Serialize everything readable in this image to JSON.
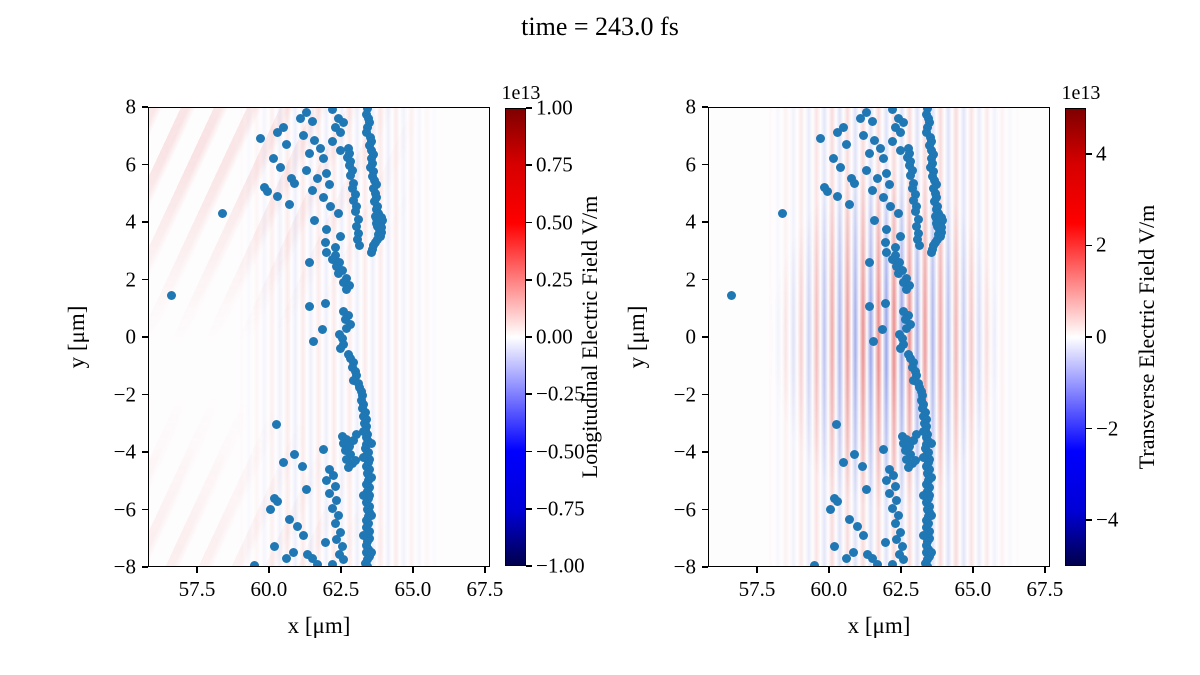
{
  "title": "time = 243.0 fs",
  "axes": {
    "xlabel": "x [μm]",
    "ylabel": "y [μm]",
    "xlim": [
      55.8,
      67.68
    ],
    "ylim": [
      -8,
      8
    ],
    "xticks": [
      57.5,
      60.0,
      62.5,
      65.0,
      67.5
    ],
    "xtick_labels": [
      "57.5",
      "60.0",
      "62.5",
      "65.0",
      "67.5"
    ],
    "yticks": [
      8,
      6,
      4,
      2,
      0,
      -2,
      -4,
      -6,
      -8
    ],
    "ytick_labels": [
      "8",
      "6",
      "4",
      "2",
      "0",
      "−2",
      "−4",
      "−6",
      "−8"
    ]
  },
  "panels": [
    {
      "name": "longitudinal-field-panel",
      "colorbar": {
        "label": "Longitudinal Electric Field V/m",
        "multiplier": "1e13",
        "vmin": -1.0,
        "vmax": 1.0,
        "ticks": [
          1.0,
          0.75,
          0.5,
          0.25,
          0.0,
          -0.25,
          -0.5,
          -0.75,
          -1.0
        ],
        "tick_labels": [
          "1.00",
          "0.75",
          "0.50",
          "0.25",
          "0.00",
          "−0.25",
          "−0.50",
          "−0.75",
          "−1.00"
        ]
      }
    },
    {
      "name": "transverse-field-panel",
      "colorbar": {
        "label": "Transverse Electric Field V/m",
        "multiplier": "1e13",
        "vmin": -5.0,
        "vmax": 5.0,
        "ticks": [
          4,
          2,
          0,
          -2,
          -4
        ],
        "tick_labels": [
          "4",
          "2",
          "0",
          "−2",
          "−4"
        ]
      }
    }
  ],
  "colors": {
    "marker": "#1f77b4",
    "colormap": "seismic",
    "cmap_top": "#7f0000",
    "cmap_upper": "#ff0000",
    "cmap_mid": "#ffffff",
    "cmap_lower": "#0000ff",
    "cmap_bottom": "#00004d",
    "field_red": "rgba(214,39,40,0.42)",
    "field_blue": "rgba(63,83,211,0.40)"
  },
  "chart_data": {
    "type": "scatter",
    "title": "time = 243.0 fs",
    "xlabel": "x [μm]",
    "ylabel": "y [μm]",
    "xlim": [
      55.8,
      67.68
    ],
    "ylim": [
      -8,
      8
    ],
    "grid": false,
    "marker_color": "#1f77b4",
    "note": "Two side-by-side panels share identical particle scatter positions; backgrounds are pcolormesh fields (seismic colormap): left = longitudinal E-field (vmax 1e13 V/m, very faint vertical/diagonal striping), right = transverse E-field (vmax 5e13 V/m, strong vertical red/blue laser stripes centered near x=62, y=0, period ~0.54 um, Gaussian envelope)",
    "background_field": {
      "stripe_period_um": 0.54,
      "right_panel_envelope_center": [
        62.0,
        0.0
      ],
      "right_panel_envelope_radius_um": [
        4.0,
        6.0
      ],
      "colormap": "seismic"
    },
    "points": [
      [
        63.42,
        7.95
      ],
      [
        63.38,
        7.75
      ],
      [
        63.45,
        7.6
      ],
      [
        63.5,
        7.45
      ],
      [
        63.42,
        7.3
      ],
      [
        63.4,
        7.1
      ],
      [
        63.52,
        6.95
      ],
      [
        63.55,
        6.8
      ],
      [
        63.5,
        6.65
      ],
      [
        63.58,
        6.5
      ],
      [
        63.62,
        6.35
      ],
      [
        63.55,
        6.2
      ],
      [
        63.6,
        6.05
      ],
      [
        63.52,
        5.9
      ],
      [
        63.65,
        5.75
      ],
      [
        63.6,
        5.6
      ],
      [
        63.68,
        5.45
      ],
      [
        63.72,
        5.3
      ],
      [
        63.65,
        5.15
      ],
      [
        63.7,
        5.0
      ],
      [
        63.75,
        4.85
      ],
      [
        63.68,
        4.7
      ],
      [
        63.78,
        4.55
      ],
      [
        63.72,
        4.42
      ],
      [
        63.8,
        4.3
      ],
      [
        63.85,
        4.2
      ],
      [
        63.75,
        4.12
      ],
      [
        63.82,
        4.0
      ],
      [
        63.88,
        3.92
      ],
      [
        63.78,
        3.85
      ],
      [
        63.85,
        3.75
      ],
      [
        63.9,
        3.65
      ],
      [
        63.8,
        3.58
      ],
      [
        63.86,
        3.48
      ],
      [
        63.78,
        3.4
      ],
      [
        63.7,
        3.3
      ],
      [
        63.65,
        3.18
      ],
      [
        63.6,
        3.05
      ],
      [
        63.55,
        2.95
      ],
      [
        63.95,
        4.05
      ],
      [
        63.92,
        3.8
      ],
      [
        63.7,
        4.2
      ],
      [
        63.72,
        3.95
      ],
      [
        63.9,
        4.15
      ],
      [
        62.75,
        6.55
      ],
      [
        62.8,
        6.4
      ],
      [
        62.72,
        6.25
      ],
      [
        62.85,
        6.1
      ],
      [
        62.8,
        5.95
      ],
      [
        62.9,
        5.8
      ],
      [
        62.85,
        5.62
      ],
      [
        62.95,
        5.35
      ],
      [
        62.9,
        5.15
      ],
      [
        63.0,
        4.95
      ],
      [
        62.95,
        4.75
      ],
      [
        63.05,
        4.55
      ],
      [
        63.0,
        4.35
      ],
      [
        63.1,
        4.1
      ],
      [
        63.05,
        3.85
      ],
      [
        63.12,
        3.6
      ],
      [
        63.08,
        3.38
      ],
      [
        63.15,
        3.2
      ],
      [
        59.7,
        6.9
      ],
      [
        59.85,
        5.2
      ],
      [
        59.95,
        5.05
      ],
      [
        60.3,
        7.1
      ],
      [
        60.5,
        7.3
      ],
      [
        60.6,
        6.7
      ],
      [
        60.15,
        6.2
      ],
      [
        60.4,
        5.9
      ],
      [
        60.8,
        5.5
      ],
      [
        60.9,
        5.35
      ],
      [
        60.3,
        4.9
      ],
      [
        60.7,
        4.6
      ],
      [
        61.1,
        7.6
      ],
      [
        61.3,
        7.8
      ],
      [
        61.5,
        7.5
      ],
      [
        61.2,
        7.0
      ],
      [
        61.6,
        6.85
      ],
      [
        61.4,
        6.4
      ],
      [
        61.8,
        6.55
      ],
      [
        61.9,
        6.2
      ],
      [
        61.3,
        5.8
      ],
      [
        61.7,
        5.5
      ],
      [
        62.0,
        5.7
      ],
      [
        62.1,
        5.3
      ],
      [
        61.5,
        5.1
      ],
      [
        61.9,
        4.85
      ],
      [
        62.2,
        7.9
      ],
      [
        62.4,
        7.6
      ],
      [
        62.3,
        7.3
      ],
      [
        62.6,
        7.45
      ],
      [
        62.5,
        7.1
      ],
      [
        62.2,
        6.8
      ],
      [
        62.5,
        6.5
      ],
      [
        62.15,
        4.55
      ],
      [
        62.4,
        4.3
      ],
      [
        61.6,
        4.05
      ],
      [
        62.0,
        3.75
      ],
      [
        62.5,
        3.5
      ],
      [
        61.95,
        3.3
      ],
      [
        62.3,
        3.1
      ],
      [
        56.62,
        1.45
      ],
      [
        58.4,
        4.3
      ],
      [
        60.25,
        -3.05
      ],
      [
        62.0,
        2.95
      ],
      [
        62.3,
        2.85
      ],
      [
        62.2,
        2.7
      ],
      [
        62.45,
        2.6
      ],
      [
        61.4,
        2.6
      ],
      [
        62.35,
        2.45
      ],
      [
        62.55,
        2.3
      ],
      [
        62.4,
        2.2
      ],
      [
        62.7,
        2.05
      ],
      [
        62.6,
        1.9
      ],
      [
        62.8,
        1.8
      ],
      [
        62.68,
        1.65
      ],
      [
        61.95,
        1.15
      ],
      [
        61.4,
        1.05
      ],
      [
        62.6,
        0.9
      ],
      [
        62.75,
        0.75
      ],
      [
        62.65,
        0.6
      ],
      [
        62.85,
        0.45
      ],
      [
        62.7,
        0.3
      ],
      [
        61.85,
        0.25
      ],
      [
        62.45,
        0.1
      ],
      [
        62.55,
        -0.05
      ],
      [
        61.55,
        -0.15
      ],
      [
        62.6,
        -0.25
      ],
      [
        62.5,
        -0.4
      ],
      [
        62.75,
        -0.6
      ],
      [
        62.85,
        -0.75
      ],
      [
        62.95,
        -0.9
      ],
      [
        62.9,
        -1.05
      ],
      [
        63.0,
        -1.2
      ],
      [
        63.05,
        -1.35
      ],
      [
        62.95,
        -1.5
      ],
      [
        63.1,
        -1.6
      ],
      [
        63.15,
        -1.75
      ],
      [
        63.2,
        -1.9
      ],
      [
        63.25,
        -2.05
      ],
      [
        63.2,
        -2.2
      ],
      [
        63.3,
        -2.35
      ],
      [
        63.25,
        -2.5
      ],
      [
        63.35,
        -2.62
      ],
      [
        63.3,
        -2.75
      ],
      [
        63.38,
        -2.88
      ],
      [
        63.32,
        -3.0
      ],
      [
        63.4,
        -3.12
      ],
      [
        63.35,
        -3.25
      ],
      [
        63.42,
        -3.38
      ],
      [
        63.38,
        -3.5
      ],
      [
        63.45,
        -3.62
      ],
      [
        63.4,
        -3.75
      ],
      [
        63.35,
        -3.88
      ],
      [
        63.45,
        -4.0
      ],
      [
        63.4,
        -4.12
      ],
      [
        63.5,
        -4.25
      ],
      [
        63.45,
        -4.38
      ],
      [
        63.38,
        -4.5
      ],
      [
        63.48,
        -4.62
      ],
      [
        63.42,
        -4.75
      ],
      [
        63.5,
        -4.88
      ],
      [
        63.45,
        -5.0
      ],
      [
        63.4,
        -5.12
      ],
      [
        63.48,
        -5.25
      ],
      [
        63.42,
        -5.38
      ],
      [
        63.5,
        -5.5
      ],
      [
        63.45,
        -5.62
      ],
      [
        63.4,
        -5.75
      ],
      [
        63.48,
        -5.88
      ],
      [
        63.42,
        -6.0
      ],
      [
        63.5,
        -6.12
      ],
      [
        63.45,
        -6.25
      ],
      [
        63.38,
        -6.38
      ],
      [
        63.46,
        -6.5
      ],
      [
        63.4,
        -6.62
      ],
      [
        63.48,
        -6.75
      ],
      [
        63.42,
        -6.88
      ],
      [
        63.5,
        -7.0
      ],
      [
        63.44,
        -7.12
      ],
      [
        63.38,
        -7.25
      ],
      [
        63.46,
        -7.38
      ],
      [
        63.4,
        -7.5
      ],
      [
        63.48,
        -7.62
      ],
      [
        63.42,
        -7.75
      ],
      [
        63.36,
        -7.88
      ],
      [
        63.44,
        -7.98
      ],
      [
        63.28,
        -3.3
      ],
      [
        63.55,
        -3.7
      ],
      [
        63.3,
        -4.2
      ],
      [
        63.55,
        -4.9
      ],
      [
        63.28,
        -5.5
      ],
      [
        63.55,
        -6.2
      ],
      [
        63.3,
        -6.9
      ],
      [
        63.55,
        -7.5
      ],
      [
        62.55,
        -3.45
      ],
      [
        62.7,
        -3.55
      ],
      [
        62.6,
        -3.7
      ],
      [
        62.8,
        -3.8
      ],
      [
        62.65,
        -3.95
      ],
      [
        62.85,
        -4.1
      ],
      [
        62.7,
        -4.25
      ],
      [
        62.9,
        -4.4
      ],
      [
        62.75,
        -4.55
      ],
      [
        63.0,
        -4.3
      ],
      [
        62.95,
        -3.6
      ],
      [
        63.05,
        -3.4
      ],
      [
        61.9,
        -3.9
      ],
      [
        62.1,
        -4.6
      ],
      [
        62.25,
        -4.8
      ],
      [
        62.0,
        -5.0
      ],
      [
        62.3,
        -5.2
      ],
      [
        62.1,
        -5.45
      ],
      [
        62.35,
        -5.7
      ],
      [
        62.2,
        -5.95
      ],
      [
        62.4,
        -6.2
      ],
      [
        62.3,
        -6.5
      ],
      [
        62.5,
        -6.8
      ],
      [
        62.35,
        -7.05
      ],
      [
        62.55,
        -7.3
      ],
      [
        62.45,
        -7.55
      ],
      [
        62.6,
        -7.75
      ],
      [
        62.2,
        -7.9
      ],
      [
        60.9,
        -4.1
      ],
      [
        60.5,
        -4.35
      ],
      [
        61.15,
        -4.5
      ],
      [
        61.3,
        -5.3
      ],
      [
        60.2,
        -5.6
      ],
      [
        60.3,
        -5.72
      ],
      [
        60.05,
        -6.0
      ],
      [
        60.7,
        -6.35
      ],
      [
        61.0,
        -6.6
      ],
      [
        61.2,
        -6.9
      ],
      [
        60.2,
        -7.3
      ],
      [
        60.6,
        -7.7
      ],
      [
        59.5,
        -7.95
      ],
      [
        61.5,
        -7.7
      ],
      [
        61.7,
        -7.92
      ],
      [
        61.95,
        -7.15
      ],
      [
        60.85,
        -7.5
      ],
      [
        61.35,
        -7.55
      ]
    ]
  }
}
